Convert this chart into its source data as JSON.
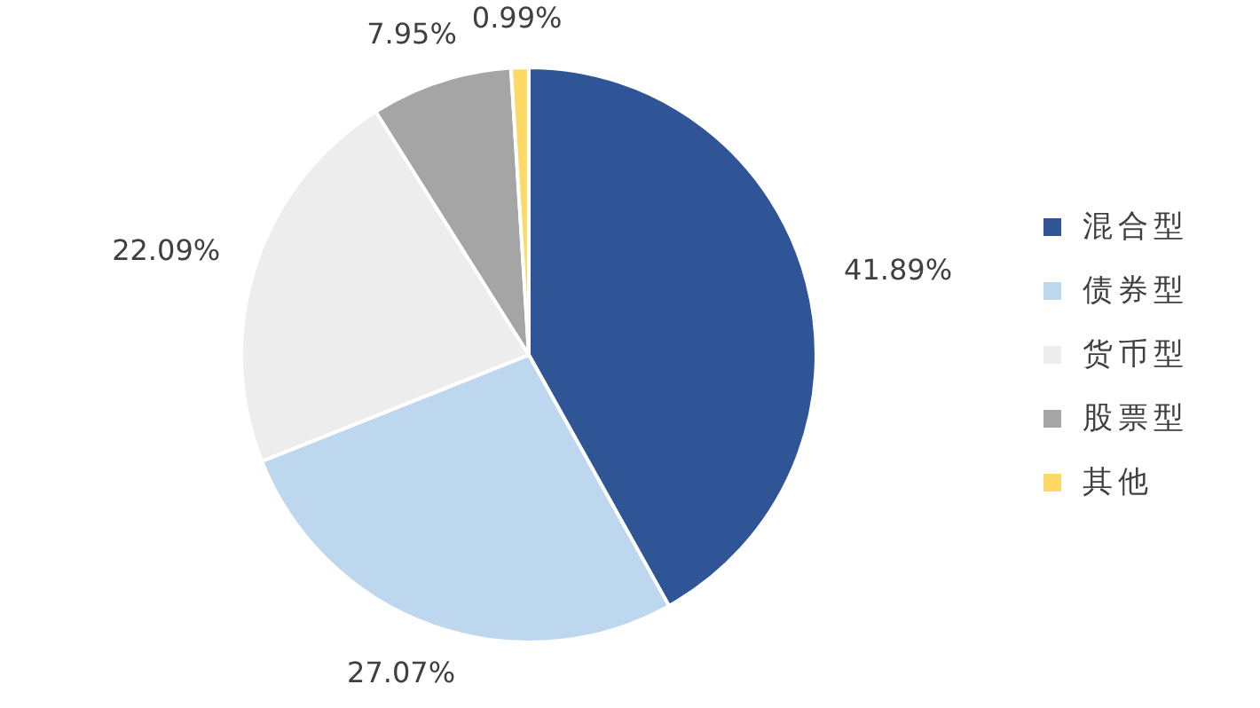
{
  "chart_data": {
    "type": "pie",
    "categories": [
      "混合型",
      "债券型",
      "货币型",
      "股票型",
      "其他"
    ],
    "values": [
      41.89,
      27.07,
      22.09,
      7.95,
      0.99
    ],
    "colors": [
      "#2f5597",
      "#bdd7ee",
      "#ededed",
      "#a5a5a5",
      "#ffd966"
    ],
    "value_labels": [
      "41.89%",
      "27.07%",
      "22.09%",
      "7.95%",
      "0.99%"
    ],
    "legend": "right"
  }
}
